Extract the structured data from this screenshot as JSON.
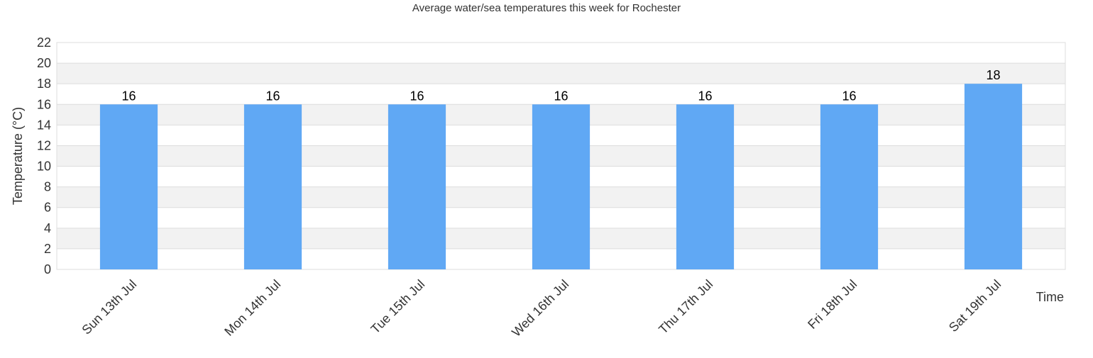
{
  "chart_data": {
    "type": "bar",
    "title": "Average water/sea temperatures this week for Rochester",
    "xlabel": "Time",
    "ylabel": "Temperature (°C)",
    "categories": [
      "Sun 13th Jul",
      "Mon 14th Jul",
      "Tue 15th Jul",
      "Wed 16th Jul",
      "Thu 17th Jul",
      "Fri 18th Jul",
      "Sat 19th Jul"
    ],
    "values": [
      16,
      16,
      16,
      16,
      16,
      16,
      18
    ],
    "data_labels": [
      "16",
      "16",
      "16",
      "16",
      "16",
      "16",
      "18"
    ],
    "ylim": [
      0,
      22
    ],
    "yticks": [
      "0",
      "2",
      "4",
      "6",
      "8",
      "10",
      "12",
      "14",
      "16",
      "18",
      "20",
      "22"
    ],
    "grid": true,
    "legend": "none",
    "colors": {
      "bar": "#60a8f4",
      "band": "#f2f2f2",
      "grid": "#dddddd",
      "text": "#333333",
      "label": "#000000"
    }
  }
}
